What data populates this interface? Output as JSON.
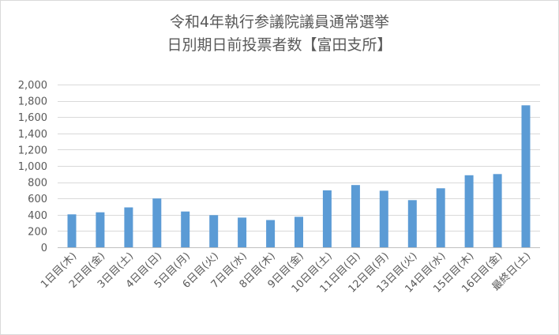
{
  "chart_data": {
    "type": "bar",
    "title_lines": [
      "令和4年執行参議院議員通常選挙",
      "日別期日前投票者数【富田支所】"
    ],
    "categories": [
      "1日目(木)",
      "2日目(金)",
      "3日目(土)",
      "4日目(日)",
      "5日目(月)",
      "6日目(火)",
      "7日目(水)",
      "8日目(木)",
      "9日目(金)",
      "10日目(土)",
      "11日目(日)",
      "12日目(月)",
      "13日目(火)",
      "14日目(水)",
      "15日目(木)",
      "16日目(金)",
      "最終日(土)"
    ],
    "values": [
      405,
      430,
      490,
      600,
      440,
      395,
      365,
      335,
      375,
      700,
      765,
      695,
      580,
      725,
      885,
      900,
      1745
    ],
    "ylim": [
      0,
      2000
    ],
    "yticks": [
      0,
      200,
      400,
      600,
      800,
      1000,
      1200,
      1400,
      1600,
      1800,
      2000
    ],
    "ytick_labels": [
      "0",
      "200",
      "400",
      "600",
      "800",
      "1,000",
      "1,200",
      "1,400",
      "1,600",
      "1,800",
      "2,000"
    ],
    "bar_color": "#5b9bd5",
    "grid": true,
    "legend": "none",
    "xlabel": "",
    "ylabel": ""
  }
}
